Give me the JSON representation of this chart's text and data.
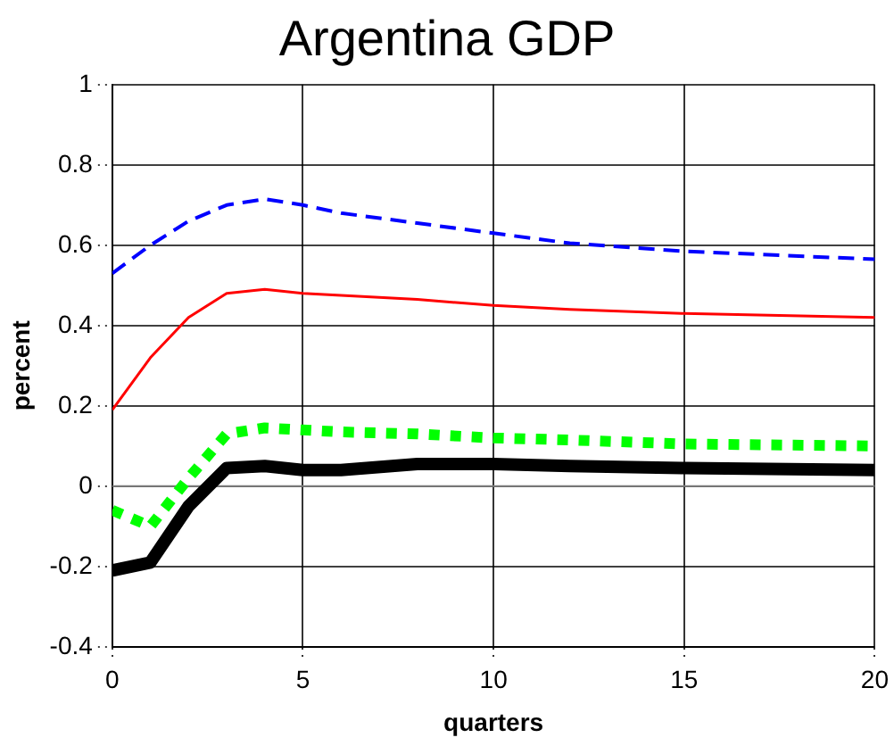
{
  "chart_data": {
    "type": "line",
    "title": "Argentina GDP",
    "xlabel": "quarters",
    "ylabel": "percent",
    "x": [
      0,
      1,
      2,
      3,
      4,
      5,
      6,
      8,
      10,
      12,
      15,
      20
    ],
    "series": [
      {
        "color": "#0000ff",
        "line_style": "dashed",
        "values": [
          0.53,
          0.6,
          0.66,
          0.7,
          0.715,
          0.7,
          0.68,
          0.655,
          0.63,
          0.605,
          0.585,
          0.565
        ]
      },
      {
        "color": "#ff0000",
        "line_style": "solid",
        "values": [
          0.19,
          0.32,
          0.42,
          0.48,
          0.49,
          0.48,
          0.475,
          0.465,
          0.45,
          0.44,
          0.43,
          0.42
        ]
      },
      {
        "color": "#00ff00",
        "line_style": "dotted",
        "values": [
          -0.06,
          -0.1,
          0.02,
          0.13,
          0.145,
          0.14,
          0.135,
          0.13,
          0.12,
          0.115,
          0.105,
          0.1
        ]
      },
      {
        "color": "#000000",
        "line_style": "solid",
        "values": [
          -0.21,
          -0.19,
          -0.05,
          0.045,
          0.05,
          0.04,
          0.04,
          0.055,
          0.055,
          0.05,
          0.045,
          0.04
        ]
      }
    ],
    "xlim": [
      0,
      20
    ],
    "xticks": [
      0,
      5,
      10,
      15,
      20
    ],
    "ylim": [
      -0.4,
      1
    ],
    "yticks": [
      -0.4,
      -0.2,
      0,
      0.2,
      0.4,
      0.6,
      0.8,
      1
    ],
    "ref_lines": [
      {
        "axis": "y",
        "value": 0,
        "color": "#808080"
      }
    ],
    "grid": true,
    "legend": false,
    "marker": "none"
  }
}
